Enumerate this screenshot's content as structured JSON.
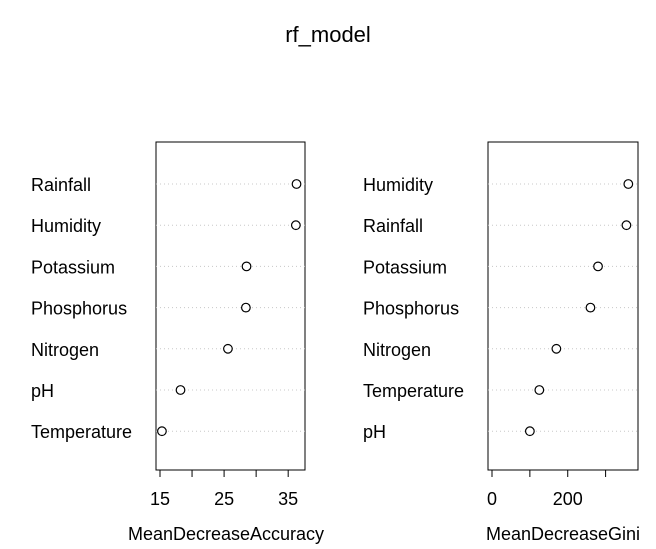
{
  "chart_data": [
    {
      "type": "scatter",
      "title": "rf_model",
      "xlabel": "MeanDecreaseAccuracy",
      "xlim": [
        15,
        37
      ],
      "xticks": [
        15,
        20,
        25,
        30,
        35
      ],
      "xtick_labels": [
        "15",
        "",
        "25",
        "",
        "35"
      ],
      "categories": [
        "Rainfall",
        "Humidity",
        "Potassium",
        "Phosphorus",
        "Nitrogen",
        "pH",
        "Temperature"
      ],
      "values": [
        36.3,
        36.2,
        28.5,
        28.4,
        25.6,
        18.2,
        15.3
      ],
      "grid": "dotted"
    },
    {
      "type": "scatter",
      "xlabel": "MeanDecreaseGini",
      "xlim": [
        0,
        375
      ],
      "xticks": [
        0,
        100,
        200,
        300
      ],
      "xtick_labels": [
        "0",
        "",
        "200",
        ""
      ],
      "categories": [
        "Humidity",
        "Rainfall",
        "Potassium",
        "Phosphorus",
        "Nitrogen",
        "Temperature",
        "pH"
      ],
      "values": [
        360,
        355,
        280,
        260,
        170,
        125,
        100
      ],
      "grid": "dotted"
    }
  ]
}
